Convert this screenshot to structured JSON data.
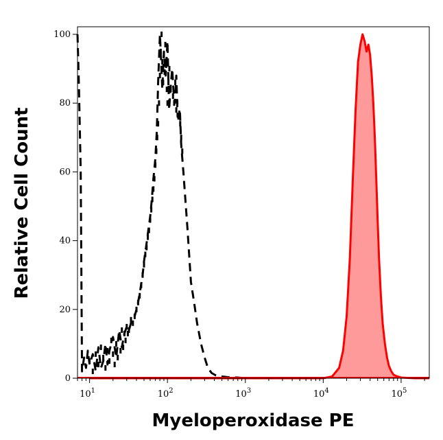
{
  "chart_data": {
    "type": "area",
    "title": "",
    "xlabel": "Myeloperoxidase PE",
    "ylabel": "Relative Cell Count",
    "x_scale": "log",
    "xlim": [
      7,
      230000
    ],
    "ylim": [
      0,
      100
    ],
    "grid": false,
    "x_ticks": [
      {
        "value": 10,
        "base": "10",
        "exp": "1"
      },
      {
        "value": 100,
        "base": "10",
        "exp": "2"
      },
      {
        "value": 1000,
        "base": "10",
        "exp": "3"
      },
      {
        "value": 10000,
        "base": "10",
        "exp": "4"
      },
      {
        "value": 100000,
        "base": "10",
        "exp": "5"
      }
    ],
    "y_ticks": [
      0,
      20,
      40,
      60,
      80,
      100
    ],
    "y_tick_labels": [
      "0",
      "20",
      "40",
      "60",
      "80",
      "100"
    ],
    "series": [
      {
        "style": "dashed",
        "color": "#000000",
        "fill": "none",
        "x": [
          7,
          7.3,
          7.7,
          8,
          8.5,
          9,
          9.5,
          10,
          11,
          12,
          13,
          14,
          15,
          16,
          17,
          18,
          20,
          22,
          24,
          26,
          28,
          30,
          32,
          35,
          38,
          40,
          42,
          45,
          48,
          50,
          53,
          56,
          60,
          63,
          66,
          70,
          73,
          76,
          80,
          83,
          86,
          90,
          95,
          100,
          105,
          110,
          115,
          120,
          125,
          130,
          135,
          140,
          145,
          150,
          160,
          170,
          180,
          190,
          200,
          220,
          240,
          270,
          300,
          330,
          370,
          420,
          500,
          600,
          800,
          1000
        ],
        "y": [
          100,
          85,
          60,
          2,
          6,
          3,
          8,
          4,
          7,
          2,
          9,
          3,
          5,
          10,
          4,
          8,
          12,
          6,
          14,
          9,
          13,
          15,
          14,
          17,
          18,
          20,
          22,
          26,
          30,
          34,
          38,
          42,
          47,
          52,
          58,
          64,
          72,
          86,
          100,
          92,
          84,
          95,
          88,
          98,
          78,
          85,
          90,
          83,
          80,
          88,
          76,
          78,
          77,
          68,
          60,
          52,
          44,
          36,
          28,
          22,
          16,
          10,
          6,
          3,
          1.5,
          0.8,
          0.5,
          0.3,
          0.2,
          0
        ],
        "markers": [
          [
            10,
            5
          ],
          [
            11,
            2
          ],
          [
            12,
            7
          ],
          [
            13,
            4
          ],
          [
            14,
            9
          ],
          [
            15,
            6
          ],
          [
            16,
            3
          ],
          [
            17,
            8
          ],
          [
            18,
            5
          ],
          [
            19,
            11
          ],
          [
            20,
            7
          ],
          [
            21,
            4
          ],
          [
            22,
            10
          ],
          [
            23,
            6
          ],
          [
            24,
            12
          ],
          [
            25,
            8
          ],
          [
            26,
            14
          ],
          [
            27,
            9
          ],
          [
            28,
            13
          ],
          [
            29,
            11
          ],
          [
            30,
            15
          ],
          [
            31,
            13
          ],
          [
            32,
            14
          ],
          [
            34,
            17
          ],
          [
            36,
            16
          ],
          [
            38,
            18
          ],
          [
            40,
            20
          ],
          [
            42,
            22
          ],
          [
            44,
            24
          ],
          [
            46,
            27
          ],
          [
            48,
            30
          ],
          [
            50,
            33
          ],
          [
            52,
            36
          ],
          [
            54,
            38
          ],
          [
            56,
            41
          ],
          [
            58,
            43
          ],
          [
            60,
            46
          ],
          [
            62,
            49
          ],
          [
            64,
            52
          ],
          [
            66,
            55
          ],
          [
            68,
            58
          ],
          [
            70,
            62
          ],
          [
            72,
            66
          ],
          [
            74,
            70
          ],
          [
            76,
            74
          ],
          [
            78,
            80
          ],
          [
            80,
            88
          ],
          [
            82,
            95
          ],
          [
            84,
            100
          ],
          [
            86,
            92
          ],
          [
            88,
            86
          ],
          [
            90,
            94
          ],
          [
            92,
            89
          ],
          [
            94,
            97
          ],
          [
            96,
            91
          ],
          [
            98,
            84
          ],
          [
            100,
            80
          ],
          [
            103,
            86
          ],
          [
            106,
            90
          ],
          [
            110,
            84
          ],
          [
            114,
            88
          ],
          [
            118,
            82
          ],
          [
            122,
            80
          ],
          [
            126,
            86
          ],
          [
            130,
            78
          ],
          [
            134,
            80
          ],
          [
            138,
            76
          ],
          [
            142,
            77
          ],
          [
            146,
            74
          ],
          [
            150,
            70
          ],
          [
            155,
            66
          ]
        ]
      },
      {
        "style": "solid",
        "color": "#ff0000",
        "fill": "#ff9a9a",
        "x": [
          10,
          100,
          1000,
          10000,
          13000,
          16000,
          18000,
          20000,
          22000,
          24000,
          26000,
          28000,
          30000,
          32000,
          34000,
          36000,
          38000,
          40000,
          42000,
          44000,
          46000,
          48000,
          50000,
          52000,
          55000,
          58000,
          62000,
          66000,
          70000,
          75000,
          80000,
          90000,
          100000,
          150000,
          230000
        ],
        "y": [
          0,
          0,
          0,
          0,
          0.5,
          3,
          8,
          18,
          35,
          58,
          78,
          92,
          97,
          100,
          98,
          95,
          97,
          94,
          88,
          80,
          70,
          58,
          46,
          35,
          24,
          16,
          10,
          6,
          3.5,
          2,
          1,
          0.5,
          0.2,
          0,
          0
        ]
      }
    ]
  }
}
